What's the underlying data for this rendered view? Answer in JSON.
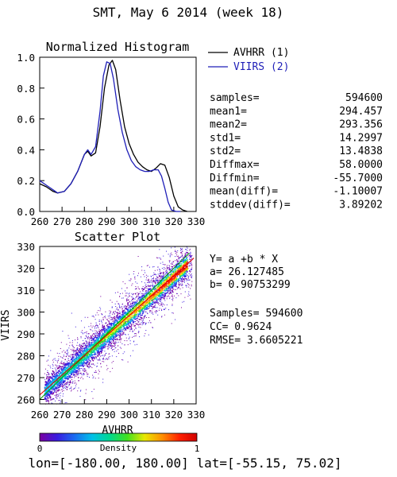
{
  "figure": {
    "title": "SMT,  May 6 2014 (week 18)",
    "footer": "lon=[-180.00, 180.00] lat=[-55.15, 75.02]"
  },
  "histogram_stats": [
    {
      "label": "samples=",
      "value": "594600"
    },
    {
      "label": "mean1=",
      "value": "294.457"
    },
    {
      "label": "mean2=",
      "value": "293.356"
    },
    {
      "label": "std1=",
      "value": "14.2997"
    },
    {
      "label": "std2=",
      "value": "13.4838"
    },
    {
      "label": "Diffmax=",
      "value": "58.0000"
    },
    {
      "label": "Diffmin=",
      "value": "-55.7000"
    },
    {
      "label": "mean(diff)=",
      "value": "-1.10007"
    },
    {
      "label": "stddev(diff)=",
      "value": "3.89202"
    }
  ],
  "scatter_stats": {
    "equation": "Y= a +b * X",
    "a": "a= 26.127485",
    "b": "b= 0.90753299",
    "samples": "Samples= 594600",
    "cc": "CC=  0.9624",
    "rmse": "RMSE= 3.6605221"
  },
  "colorbar": {
    "label": "Density",
    "min_label": "0",
    "max_label": "1",
    "colors": [
      "#7a00a0",
      "#3a1ce0",
      "#1a6cf0",
      "#00c0e8",
      "#00d890",
      "#40e020",
      "#e8e800",
      "#ff9000",
      "#ff2000",
      "#d00000"
    ]
  },
  "chart_data": [
    {
      "type": "line",
      "title": "Normalized Histogram",
      "xlabel": "",
      "ylabel": "",
      "xlim": [
        260,
        330
      ],
      "ylim": [
        0.0,
        1.0
      ],
      "x_ticks": [
        "260",
        "270",
        "280",
        "290",
        "300",
        "310",
        "320",
        "330"
      ],
      "y_ticks": [
        "0.0",
        "0.2",
        "0.4",
        "0.6",
        "0.8",
        "1.0"
      ],
      "legend_position": "top-right",
      "grid": false,
      "series": [
        {
          "name": "AVHRR (1)",
          "color": "#000000",
          "x": [
            260,
            263,
            266,
            268,
            271,
            274,
            277,
            280,
            281.5,
            283,
            285,
            287,
            289,
            291,
            292.5,
            294,
            296,
            298,
            300,
            302,
            304,
            306,
            308,
            310,
            312,
            314,
            316,
            318,
            320,
            322,
            324,
            326
          ],
          "y": [
            0.18,
            0.16,
            0.13,
            0.12,
            0.13,
            0.18,
            0.26,
            0.37,
            0.39,
            0.36,
            0.38,
            0.55,
            0.8,
            0.95,
            0.98,
            0.92,
            0.72,
            0.55,
            0.44,
            0.37,
            0.32,
            0.29,
            0.27,
            0.26,
            0.28,
            0.31,
            0.3,
            0.22,
            0.1,
            0.03,
            0.01,
            0.0
          ]
        },
        {
          "name": "VIIRS (2)",
          "color": "#1f1fb8",
          "x": [
            260,
            263,
            266,
            268,
            271,
            274,
            277,
            280,
            281.5,
            283,
            285,
            287,
            288.5,
            290,
            291.5,
            293,
            295,
            297,
            299,
            301,
            303,
            305,
            307,
            309,
            311,
            313,
            314.5,
            316,
            317.5,
            319,
            321,
            323
          ],
          "y": [
            0.2,
            0.17,
            0.14,
            0.12,
            0.13,
            0.18,
            0.26,
            0.37,
            0.4,
            0.37,
            0.42,
            0.65,
            0.88,
            0.97,
            0.96,
            0.86,
            0.66,
            0.51,
            0.4,
            0.33,
            0.29,
            0.27,
            0.26,
            0.26,
            0.27,
            0.27,
            0.23,
            0.15,
            0.06,
            0.01,
            0.0,
            0.0
          ]
        }
      ]
    },
    {
      "type": "scatter",
      "title": "Scatter Plot",
      "xlabel": "AVHRR",
      "ylabel": "VIIRS",
      "xlim": [
        260,
        330
      ],
      "ylim": [
        258,
        330
      ],
      "x_ticks": [
        "260",
        "270",
        "280",
        "290",
        "300",
        "310",
        "320",
        "330"
      ],
      "y_ticks": [
        "260",
        "270",
        "280",
        "290",
        "300",
        "310",
        "320",
        "330"
      ],
      "grid": false,
      "fit_line": {
        "a": 26.127485,
        "b": 0.90753299,
        "color": "#e00000"
      },
      "identity_line": {
        "color": "#00a000"
      },
      "samples": 594600,
      "density_note": "colored by normalized point density"
    }
  ]
}
